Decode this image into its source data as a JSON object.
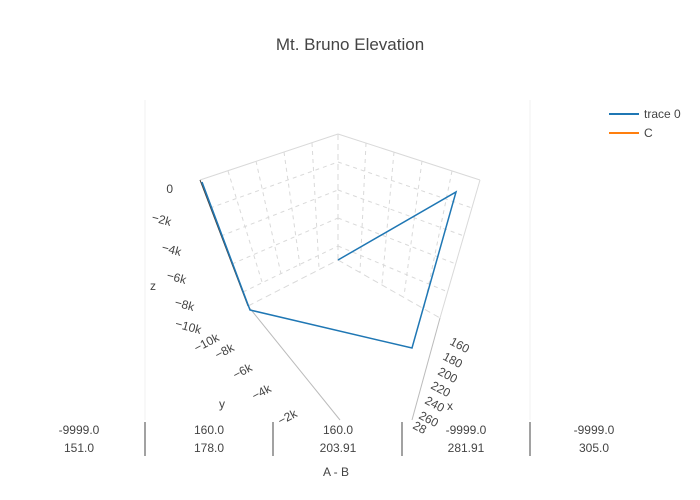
{
  "chart_data": {
    "type": "line",
    "title": "Mt. Bruno Elevation",
    "scene": {
      "x_title": "x",
      "y_title": "y",
      "z_title": "z",
      "x_ticks": [
        "160",
        "180",
        "200",
        "220",
        "240",
        "260",
        "28"
      ],
      "y_ticks": [
        "−2k",
        "−4k",
        "−6k",
        "−8k",
        "−10k"
      ],
      "z_ticks": [
        "0",
        "−2k",
        "−4k",
        "−6k",
        "−8k",
        "−10k"
      ]
    },
    "legend": {
      "placement": "top-right",
      "entries": [
        {
          "name": "trace 0",
          "color": "#1f77b4"
        },
        {
          "name": "C",
          "color": "#ff7f0e"
        }
      ]
    },
    "series": [
      {
        "name": "trace 0",
        "color": "#1f77b4",
        "points": [
          {
            "x": 151.0,
            "y": -9999.0,
            "z": -9999.0
          },
          {
            "x": 178.0,
            "y": 160.0,
            "z": -9999.0
          },
          {
            "x": 203.91,
            "y": 160.0,
            "z": 160.0
          },
          {
            "x": 281.91,
            "y": -9999.0,
            "z": 160.0
          },
          {
            "x": 305.0,
            "y": -9999.0,
            "z": -9999.0
          }
        ]
      }
    ],
    "table": {
      "columns": [
        {
          "top": "-9999.0",
          "bottom": "151.0"
        },
        {
          "top": "160.0",
          "bottom": "178.0"
        },
        {
          "top": "160.0",
          "bottom": "203.91"
        },
        {
          "top": "-9999.0",
          "bottom": "281.91"
        },
        {
          "top": "-9999.0",
          "bottom": "305.0"
        }
      ],
      "xlabel": "A - B"
    }
  }
}
